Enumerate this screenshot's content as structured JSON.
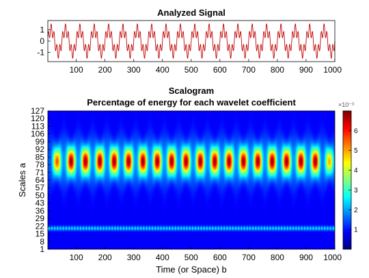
{
  "chart_data": [
    {
      "type": "line",
      "title": "Analyzed Signal",
      "xlim": [
        1,
        1000
      ],
      "ylim": [
        -1.8,
        1.8
      ],
      "x_ticks": [
        100,
        200,
        300,
        400,
        500,
        600,
        700,
        800,
        900,
        1000
      ],
      "y_ticks": [
        1,
        0,
        -1
      ],
      "series": [
        {
          "color": "#c00000",
          "components": [
            {
              "amplitude": 1.0,
              "period": 50
            },
            {
              "amplitude": 0.5,
              "period": 10
            }
          ]
        }
      ],
      "grid": false
    },
    {
      "type": "heatmap",
      "title": "Scalogram",
      "subtitle": "Percentage of energy for each wavelet coefficient",
      "xlabel": "Time (or Space) b",
      "ylabel": "Scales a",
      "xlim": [
        1,
        1000
      ],
      "ylim": [
        1,
        127
      ],
      "x_ticks": [
        100,
        200,
        300,
        400,
        500,
        600,
        700,
        800,
        900,
        1000
      ],
      "y_ticks": [
        1,
        8,
        15,
        22,
        29,
        36,
        43,
        50,
        57,
        64,
        71,
        78,
        85,
        92,
        99,
        106,
        113,
        120,
        127
      ],
      "colormap": "jet",
      "features": [
        {
          "scale_center": 81,
          "scale_width": 14,
          "period": 50,
          "peak_value": 0.0068
        },
        {
          "scale_center": 20,
          "scale_width": 2,
          "period": 10,
          "peak_value": 0.0022
        }
      ],
      "colorbar": {
        "range": [
          0,
          0.007
        ],
        "ticks": [
          1,
          2,
          3,
          4,
          5,
          6
        ],
        "exponent_label": "×10⁻³"
      }
    }
  ]
}
